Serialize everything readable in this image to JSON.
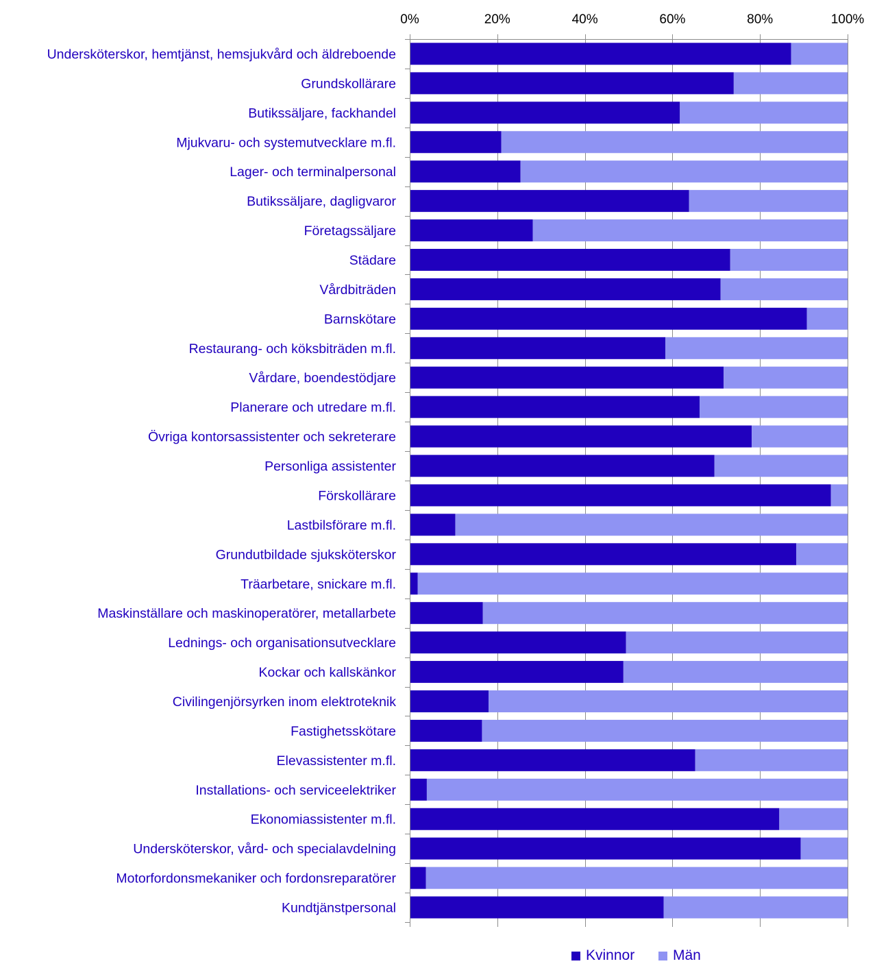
{
  "colors": {
    "kvinnor": "#2000BE",
    "man": "#8F93F3",
    "label_text": "#2000BE",
    "axis": "#8C8C8C",
    "tick_text": "#000000"
  },
  "legend": {
    "items": [
      {
        "label": "Kvinnor",
        "color": "#2000BE"
      },
      {
        "label": "Män",
        "color": "#8F93F3"
      }
    ],
    "position": "bottom"
  },
  "chart_data": {
    "type": "bar",
    "orientation": "horizontal",
    "stacked": "percent",
    "title": "",
    "xlabel": "",
    "ylabel": "",
    "xlim": [
      0,
      100
    ],
    "x_ticks": [
      "0%",
      "20%",
      "40%",
      "60%",
      "80%",
      "100%"
    ],
    "x_tick_values": [
      0,
      20,
      40,
      60,
      80,
      100
    ],
    "x_axis_position": "top",
    "grid": "vertical",
    "categories": [
      "Undersköterskor, hemtjänst, hemsjukvård och äldreboende",
      "Grundskollärare",
      "Butikssäljare, fackhandel",
      "Mjukvaru- och systemutvecklare m.fl.",
      "Lager- och terminalpersonal",
      "Butikssäljare, dagligvaror",
      "Företagssäljare",
      "Städare",
      "Vårdbiträden",
      "Barnskötare",
      "Restaurang- och köksbiträden m.fl.",
      "Vårdare, boendestödjare",
      "Planerare och utredare m.fl.",
      "Övriga kontorsassistenter och sekreterare",
      "Personliga assistenter",
      "Förskollärare",
      "Lastbilsförare m.fl.",
      "Grundutbildade sjuksköterskor",
      "Träarbetare, snickare m.fl.",
      "Maskinställare och maskinoperatörer, metallarbete",
      "Lednings- och organisationsutvecklare",
      "Kockar och kallskänkor",
      "Civilingenjörsyrken inom elektroteknik",
      "Fastighetsskötare",
      "Elevassistenter m.fl.",
      "Installations- och serviceelektriker",
      "Ekonomiassistenter m.fl.",
      "Undersköterskor, vård- och specialavdelning",
      "Motorfordonsmekaniker och fordonsreparatörer",
      "Kundtjänstpersonal"
    ],
    "series": [
      {
        "name": "Kvinnor",
        "values": [
          87.1,
          74.0,
          61.7,
          20.9,
          25.3,
          63.8,
          28.1,
          73.2,
          71.0,
          90.7,
          58.4,
          71.7,
          66.2,
          78.1,
          69.6,
          96.2,
          10.4,
          88.3,
          1.8,
          16.7,
          49.4,
          48.8,
          18.0,
          16.5,
          65.2,
          3.9,
          84.4,
          89.3,
          3.7,
          58.0
        ]
      },
      {
        "name": "Män",
        "values": [
          12.9,
          26.0,
          38.3,
          79.1,
          74.7,
          36.2,
          71.9,
          26.8,
          29.0,
          9.3,
          41.6,
          28.3,
          33.8,
          21.9,
          30.4,
          3.8,
          89.6,
          11.7,
          98.2,
          83.3,
          50.6,
          51.2,
          82.0,
          83.5,
          34.8,
          96.1,
          15.6,
          10.7,
          96.3,
          42.0
        ]
      }
    ]
  }
}
